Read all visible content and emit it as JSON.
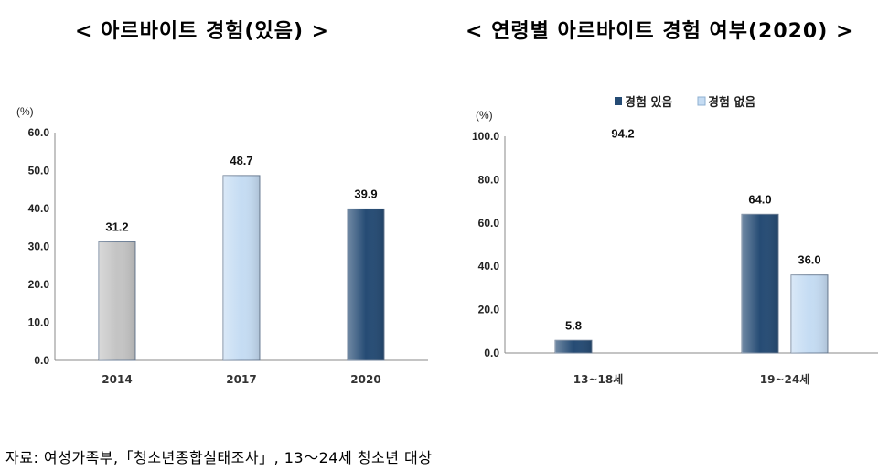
{
  "chart_data": [
    {
      "type": "bar",
      "title": "< 아르바이트 경험(있음) >",
      "unit_label": "(%)",
      "categories": [
        "2014",
        "2017",
        "2020"
      ],
      "values": [
        31.2,
        48.7,
        39.9
      ],
      "value_labels": [
        "31.2",
        "48.7",
        "39.9"
      ],
      "bar_colors": [
        "#c4c4c4",
        "#c5dcf3",
        "#254b74"
      ],
      "ylim": [
        0,
        60
      ],
      "yticks": [
        "0.0",
        "10.0",
        "20.0",
        "30.0",
        "40.0",
        "50.0",
        "60.0"
      ],
      "grid": false,
      "legend": false
    },
    {
      "type": "bar",
      "title": "< 연령별 아르바이트 경험 여부(2020) >",
      "unit_label": "(%)",
      "categories": [
        "13~18세",
        "19~24세"
      ],
      "series": [
        {
          "name": "경험 있음",
          "values": [
            5.8,
            64.0
          ],
          "value_labels": [
            "5.8",
            "64.0"
          ],
          "color": "#254b74"
        },
        {
          "name": "경험 없음",
          "values": [
            94.2,
            36.0
          ],
          "value_labels": [
            "94.2",
            "36.0"
          ],
          "color": "#c5dcf3"
        }
      ],
      "bars_drawn": [
        [
          true,
          false
        ],
        [
          true,
          true
        ]
      ],
      "ylim": [
        0,
        100
      ],
      "yticks": [
        "0.0",
        "20.0",
        "40.0",
        "60.0",
        "80.0",
        "100.0"
      ],
      "grid": false,
      "legend": "top"
    }
  ],
  "source": "자료: 여성가족부,「청소년종합실태조사」, 13～24세 청소년 대상"
}
